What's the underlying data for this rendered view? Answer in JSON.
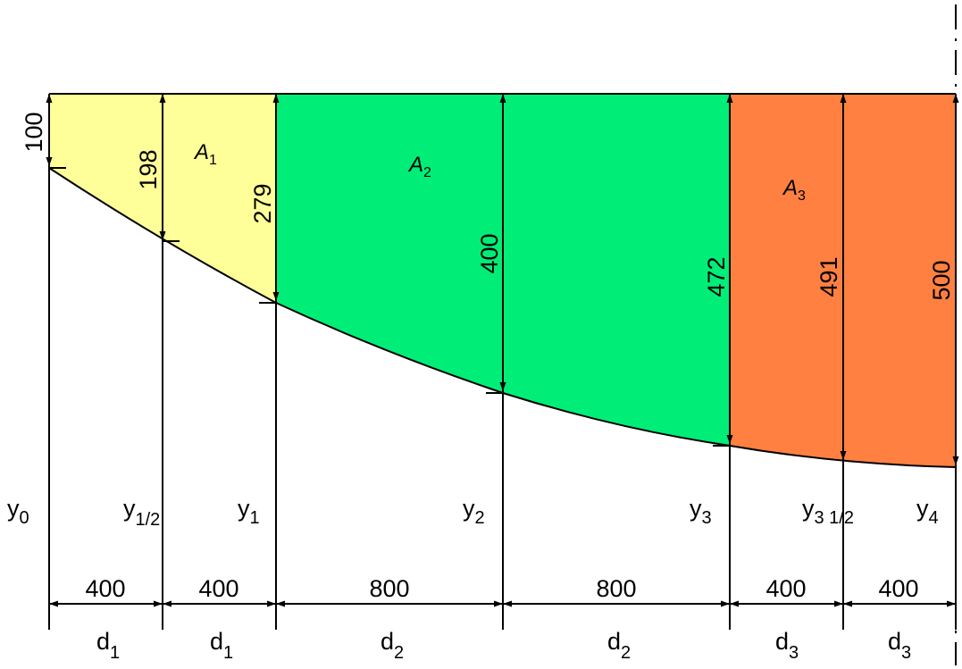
{
  "diagram": {
    "areas": [
      {
        "name": "A",
        "sub": "1",
        "color": "#FFFF99"
      },
      {
        "name": "A",
        "sub": "2",
        "color": "#00EE77"
      },
      {
        "name": "A",
        "sub": "3",
        "color": "#FF8040"
      }
    ],
    "ordinates": [
      {
        "value": "100",
        "symbol": "y",
        "sub": "0"
      },
      {
        "value": "198",
        "symbol": "y",
        "sub": "1/2"
      },
      {
        "value": "279",
        "symbol": "y",
        "sub": "1"
      },
      {
        "value": "400",
        "symbol": "y",
        "sub": "2"
      },
      {
        "value": "472",
        "symbol": "y",
        "sub": "3"
      },
      {
        "value": "491",
        "symbol": "y",
        "sub": "3 1/2"
      },
      {
        "value": "500",
        "symbol": "y",
        "sub": "4"
      }
    ],
    "spans": [
      {
        "length": "400",
        "symbol": "d",
        "sub": "1"
      },
      {
        "length": "400",
        "symbol": "d",
        "sub": "1"
      },
      {
        "length": "800",
        "symbol": "d",
        "sub": "2"
      },
      {
        "length": "800",
        "symbol": "d",
        "sub": "2"
      },
      {
        "length": "400",
        "symbol": "d",
        "sub": "3"
      },
      {
        "length": "400",
        "symbol": "d",
        "sub": "3"
      }
    ]
  }
}
